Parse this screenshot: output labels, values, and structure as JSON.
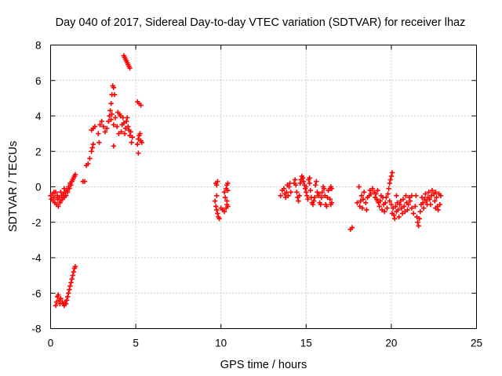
{
  "chart_data": {
    "type": "scatter",
    "title": "Day 040 of 2017, Sidereal Day-to-day VTEC variation (SDTVAR) for receiver lhaz",
    "xlabel": "GPS time / hours",
    "ylabel": "SDTVAR / TECUs",
    "xlim": [
      0,
      25
    ],
    "ylim": [
      -8,
      8
    ],
    "x_ticks": [
      0,
      5,
      10,
      15,
      20,
      25
    ],
    "y_ticks": [
      -8,
      -6,
      -4,
      -2,
      0,
      2,
      4,
      6,
      8
    ],
    "x_tick_labels": [
      "0",
      "5",
      "10",
      "15",
      "20",
      "25"
    ],
    "y_tick_labels": [
      "-8",
      "-6",
      "-4",
      "-2",
      "0",
      "2",
      "4",
      "6",
      "8"
    ],
    "grid": true,
    "legend": "none",
    "marker": "plus",
    "color": "#ff0000",
    "series": [
      {
        "name": "SDTVAR",
        "points": [
          [
            0.0,
            -0.5
          ],
          [
            0.05,
            -0.7
          ],
          [
            0.1,
            -0.4
          ],
          [
            0.15,
            -0.8
          ],
          [
            0.2,
            -0.6
          ],
          [
            0.25,
            -0.9
          ],
          [
            0.3,
            -0.3
          ],
          [
            0.35,
            -1.0
          ],
          [
            0.4,
            -0.7
          ],
          [
            0.45,
            -1.1
          ],
          [
            0.5,
            -0.6
          ],
          [
            0.55,
            -0.9
          ],
          [
            0.6,
            -0.8
          ],
          [
            0.65,
            -0.5
          ],
          [
            0.7,
            -0.7
          ],
          [
            0.75,
            -0.4
          ],
          [
            0.8,
            -0.6
          ],
          [
            0.85,
            -0.3
          ],
          [
            0.9,
            -0.5
          ],
          [
            0.95,
            -0.2
          ],
          [
            1.0,
            -0.3
          ],
          [
            1.05,
            0.0
          ],
          [
            1.1,
            -0.1
          ],
          [
            1.15,
            0.2
          ],
          [
            1.2,
            0.1
          ],
          [
            1.25,
            0.3
          ],
          [
            1.3,
            0.4
          ],
          [
            1.35,
            0.5
          ],
          [
            1.4,
            0.6
          ],
          [
            1.45,
            0.7
          ],
          [
            0.2,
            -0.3
          ],
          [
            0.4,
            -0.5
          ],
          [
            0.6,
            -0.3
          ],
          [
            0.8,
            -0.1
          ],
          [
            0.3,
            -6.7
          ],
          [
            0.35,
            -6.5
          ],
          [
            0.4,
            -6.2
          ],
          [
            0.45,
            -6.1
          ],
          [
            0.5,
            -6.4
          ],
          [
            0.55,
            -6.6
          ],
          [
            0.6,
            -6.3
          ],
          [
            0.7,
            -6.5
          ],
          [
            0.75,
            -6.6
          ],
          [
            0.8,
            -6.7
          ],
          [
            0.85,
            -6.5
          ],
          [
            0.9,
            -6.6
          ],
          [
            0.95,
            -6.4
          ],
          [
            1.0,
            -6.2
          ],
          [
            1.05,
            -6.0
          ],
          [
            1.1,
            -5.8
          ],
          [
            1.15,
            -5.6
          ],
          [
            1.2,
            -5.4
          ],
          [
            1.25,
            -5.2
          ],
          [
            1.3,
            -5.0
          ],
          [
            1.35,
            -4.8
          ],
          [
            1.4,
            -4.6
          ],
          [
            1.45,
            -4.5
          ],
          [
            1.9,
            0.3
          ],
          [
            2.0,
            0.3
          ],
          [
            2.1,
            1.2
          ],
          [
            2.2,
            1.3
          ],
          [
            2.3,
            1.6
          ],
          [
            2.4,
            2.0
          ],
          [
            2.45,
            2.2
          ],
          [
            2.5,
            2.4
          ],
          [
            2.4,
            3.2
          ],
          [
            2.5,
            3.3
          ],
          [
            2.6,
            3.4
          ],
          [
            2.8,
            3.0
          ],
          [
            2.85,
            2.5
          ],
          [
            2.9,
            3.5
          ],
          [
            3.0,
            3.7
          ],
          [
            3.1,
            3.4
          ],
          [
            3.2,
            3.1
          ],
          [
            3.3,
            3.3
          ],
          [
            3.4,
            3.7
          ],
          [
            3.45,
            4.0
          ],
          [
            3.5,
            4.3
          ],
          [
            3.55,
            4.7
          ],
          [
            3.6,
            5.2
          ],
          [
            3.65,
            5.7
          ],
          [
            3.7,
            5.6
          ],
          [
            3.75,
            5.2
          ],
          [
            3.55,
            3.8
          ],
          [
            3.6,
            4.1
          ],
          [
            3.7,
            3.5
          ],
          [
            3.8,
            3.9
          ],
          [
            3.9,
            3.4
          ],
          [
            3.95,
            4.2
          ],
          [
            3.7,
            2.3
          ],
          [
            4.0,
            3.0
          ],
          [
            4.05,
            4.1
          ],
          [
            4.1,
            4.0
          ],
          [
            4.15,
            3.1
          ],
          [
            4.2,
            3.5
          ],
          [
            4.25,
            3.9
          ],
          [
            4.3,
            3.6
          ],
          [
            4.35,
            3.0
          ],
          [
            4.4,
            3.3
          ],
          [
            4.45,
            3.7
          ],
          [
            4.5,
            3.9
          ],
          [
            4.55,
            3.4
          ],
          [
            4.6,
            3.2
          ],
          [
            4.65,
            2.9
          ],
          [
            4.7,
            3.1
          ],
          [
            4.75,
            2.5
          ],
          [
            4.8,
            2.8
          ],
          [
            4.3,
            7.4
          ],
          [
            4.35,
            7.3
          ],
          [
            4.4,
            7.2
          ],
          [
            4.45,
            7.1
          ],
          [
            4.5,
            7.0
          ],
          [
            4.55,
            6.9
          ],
          [
            4.6,
            6.8
          ],
          [
            4.65,
            6.7
          ],
          [
            5.1,
            4.8
          ],
          [
            5.2,
            4.7
          ],
          [
            5.3,
            4.6
          ],
          [
            5.1,
            2.4
          ],
          [
            5.15,
            2.7
          ],
          [
            5.2,
            2.9
          ],
          [
            5.25,
            3.0
          ],
          [
            5.3,
            2.6
          ],
          [
            5.35,
            2.5
          ],
          [
            5.15,
            1.9
          ],
          [
            9.7,
            0.2
          ],
          [
            9.75,
            0.1
          ],
          [
            9.8,
            0.3
          ],
          [
            9.65,
            -0.8
          ],
          [
            9.7,
            -1.1
          ],
          [
            9.75,
            -1.3
          ],
          [
            9.8,
            -1.5
          ],
          [
            9.85,
            -1.7
          ],
          [
            9.9,
            -1.8
          ],
          [
            9.75,
            -0.5
          ],
          [
            10.0,
            -1.2
          ],
          [
            10.1,
            -1.3
          ],
          [
            10.2,
            -1.4
          ],
          [
            10.3,
            -1.2
          ],
          [
            10.35,
            -1.0
          ],
          [
            10.4,
            -1.1
          ],
          [
            10.2,
            -0.3
          ],
          [
            10.3,
            -0.1
          ],
          [
            10.35,
            0.1
          ],
          [
            10.4,
            -0.2
          ],
          [
            10.25,
            -0.6
          ],
          [
            10.35,
            -0.8
          ],
          [
            10.4,
            0.2
          ],
          [
            13.5,
            -0.5
          ],
          [
            13.6,
            -0.2
          ],
          [
            13.7,
            -0.1
          ],
          [
            13.75,
            -0.4
          ],
          [
            13.8,
            -0.6
          ],
          [
            13.85,
            -0.3
          ],
          [
            13.9,
            0.1
          ],
          [
            13.95,
            -0.5
          ],
          [
            14.0,
            0.0
          ],
          [
            14.05,
            0.2
          ],
          [
            14.1,
            -0.3
          ],
          [
            14.3,
            0.2
          ],
          [
            14.35,
            0.4
          ],
          [
            14.4,
            0.1
          ],
          [
            14.45,
            -0.3
          ],
          [
            14.5,
            -0.6
          ],
          [
            14.55,
            -0.8
          ],
          [
            14.6,
            -0.5
          ],
          [
            14.65,
            0.2
          ],
          [
            14.7,
            0.4
          ],
          [
            14.75,
            0.6
          ],
          [
            14.8,
            0.5
          ],
          [
            14.85,
            0.3
          ],
          [
            14.9,
            0.1
          ],
          [
            14.95,
            -0.1
          ],
          [
            15.0,
            -0.3
          ],
          [
            15.05,
            -0.5
          ],
          [
            15.1,
            -0.7
          ],
          [
            15.15,
            0.4
          ],
          [
            15.2,
            0.2
          ],
          [
            15.25,
            -0.2
          ],
          [
            15.3,
            -0.6
          ],
          [
            15.35,
            -0.9
          ],
          [
            15.4,
            -1.0
          ],
          [
            15.45,
            -0.8
          ],
          [
            15.5,
            -0.6
          ],
          [
            15.55,
            0.1
          ],
          [
            15.6,
            0.3
          ],
          [
            15.65,
            -0.3
          ],
          [
            15.7,
            -0.5
          ],
          [
            15.75,
            -0.4
          ],
          [
            15.8,
            -0.9
          ],
          [
            15.85,
            -1.0
          ],
          [
            15.9,
            -0.6
          ],
          [
            15.95,
            -0.3
          ],
          [
            16.0,
            0.0
          ],
          [
            16.05,
            -0.1
          ],
          [
            16.1,
            -0.5
          ],
          [
            16.15,
            -1.0
          ],
          [
            16.2,
            -1.1
          ],
          [
            16.25,
            -0.6
          ],
          [
            16.3,
            -0.2
          ],
          [
            16.4,
            -0.1
          ],
          [
            16.45,
            0.0
          ],
          [
            16.5,
            -0.1
          ],
          [
            16.4,
            -0.7
          ],
          [
            16.45,
            -1.0
          ],
          [
            16.5,
            -0.9
          ],
          [
            15.0,
            0.0
          ],
          [
            15.2,
            0.5
          ],
          [
            17.6,
            -2.4
          ],
          [
            17.7,
            -2.3
          ],
          [
            18.0,
            -0.9
          ],
          [
            18.1,
            0.0
          ],
          [
            18.15,
            -1.1
          ],
          [
            18.2,
            -0.8
          ],
          [
            18.25,
            -0.5
          ],
          [
            18.3,
            -1.2
          ],
          [
            18.35,
            -0.7
          ],
          [
            18.4,
            -0.3
          ],
          [
            18.5,
            -0.9
          ],
          [
            18.55,
            -1.3
          ],
          [
            18.6,
            -0.6
          ],
          [
            18.7,
            -0.5
          ],
          [
            18.75,
            -0.2
          ],
          [
            18.8,
            -0.4
          ],
          [
            18.9,
            -0.1
          ],
          [
            19.0,
            -0.3
          ],
          [
            19.05,
            -0.6
          ],
          [
            19.1,
            -0.4
          ],
          [
            19.15,
            -0.7
          ],
          [
            19.2,
            -0.2
          ],
          [
            19.25,
            -0.9
          ],
          [
            19.3,
            -1.1
          ],
          [
            19.35,
            -0.8
          ],
          [
            19.4,
            -0.5
          ],
          [
            19.45,
            -1.3
          ],
          [
            19.5,
            -0.6
          ],
          [
            19.55,
            -1.0
          ],
          [
            19.6,
            -1.4
          ],
          [
            19.65,
            -0.9
          ],
          [
            19.7,
            -0.6
          ],
          [
            19.75,
            -1.2
          ],
          [
            19.8,
            -0.4
          ],
          [
            19.85,
            -0.1
          ],
          [
            19.9,
            0.2
          ],
          [
            19.95,
            0.4
          ],
          [
            20.0,
            0.6
          ],
          [
            20.05,
            0.8
          ],
          [
            19.9,
            -0.8
          ],
          [
            20.0,
            -1.0
          ],
          [
            20.05,
            -1.5
          ],
          [
            20.1,
            -1.2
          ],
          [
            20.15,
            -1.6
          ],
          [
            20.2,
            -1.8
          ],
          [
            20.25,
            -1.1
          ],
          [
            20.3,
            -1.4
          ],
          [
            20.35,
            -0.9
          ],
          [
            20.4,
            -1.3
          ],
          [
            20.45,
            -1.7
          ],
          [
            20.5,
            -1.0
          ],
          [
            20.55,
            -0.8
          ],
          [
            20.6,
            -1.2
          ],
          [
            20.65,
            -1.5
          ],
          [
            20.7,
            -0.7
          ],
          [
            20.75,
            -1.1
          ],
          [
            20.8,
            -1.4
          ],
          [
            20.85,
            -0.5
          ],
          [
            20.9,
            -0.9
          ],
          [
            20.95,
            -1.3
          ],
          [
            21.0,
            -1.0
          ],
          [
            21.05,
            -0.6
          ],
          [
            21.1,
            -0.8
          ],
          [
            21.2,
            -1.2
          ],
          [
            21.3,
            -1.5
          ],
          [
            21.4,
            -1.1
          ],
          [
            21.45,
            -0.5
          ],
          [
            21.5,
            -1.7
          ],
          [
            21.55,
            -2.0
          ],
          [
            21.6,
            -2.2
          ],
          [
            21.65,
            -1.8
          ],
          [
            21.7,
            -1.4
          ],
          [
            21.75,
            -1.0
          ],
          [
            21.8,
            -0.6
          ],
          [
            21.85,
            -0.9
          ],
          [
            21.9,
            -1.2
          ],
          [
            21.95,
            -0.7
          ],
          [
            22.0,
            -0.4
          ],
          [
            22.05,
            -0.8
          ],
          [
            22.1,
            -1.0
          ],
          [
            22.15,
            -0.6
          ],
          [
            22.2,
            -0.3
          ],
          [
            22.25,
            -0.7
          ],
          [
            22.3,
            -1.0
          ],
          [
            22.35,
            -0.5
          ],
          [
            22.4,
            -0.2
          ],
          [
            22.5,
            -0.4
          ],
          [
            22.55,
            -0.8
          ],
          [
            22.6,
            -0.3
          ],
          [
            22.65,
            -0.6
          ],
          [
            22.7,
            -1.1
          ],
          [
            22.75,
            -1.3
          ],
          [
            22.8,
            -0.4
          ],
          [
            22.85,
            -1.0
          ],
          [
            22.9,
            -0.5
          ],
          [
            22.6,
            -1.2
          ],
          [
            21.2,
            -0.5
          ],
          [
            19.2,
            -0.8
          ],
          [
            20.3,
            -0.5
          ]
        ]
      }
    ]
  }
}
